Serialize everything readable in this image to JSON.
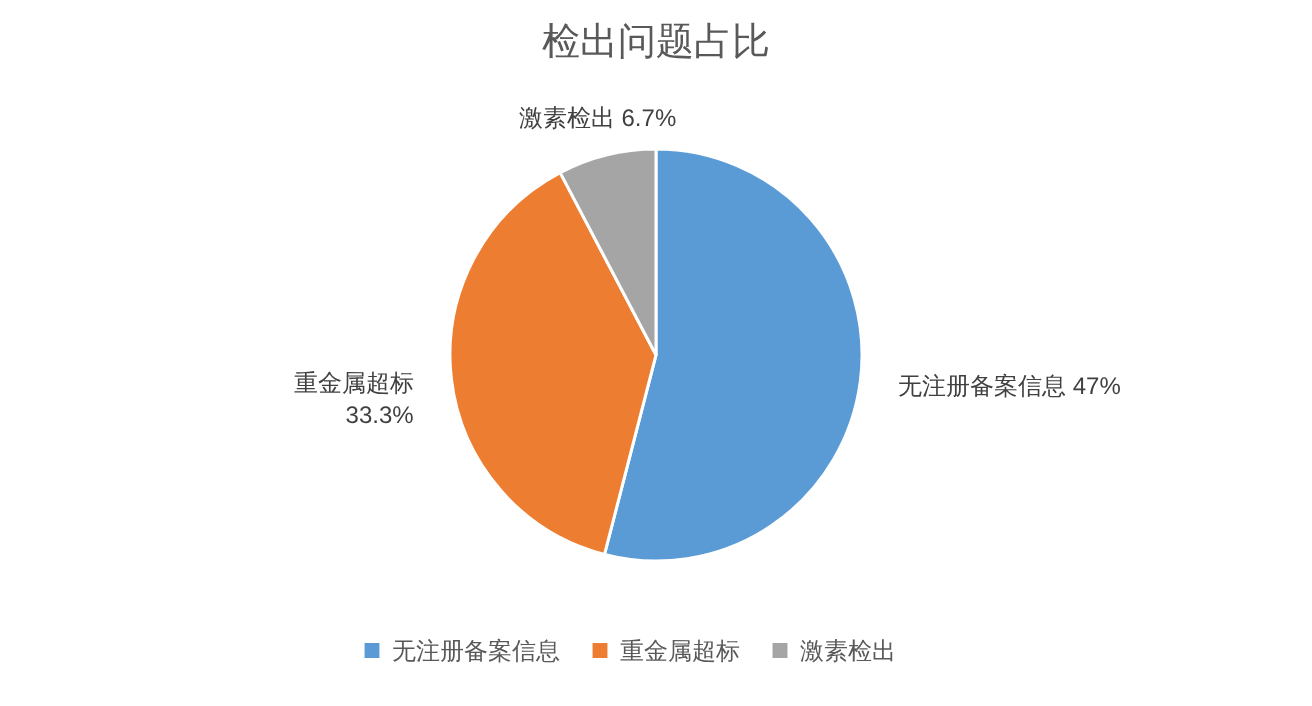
{
  "chart_data": {
    "type": "pie",
    "title": "检出问题占比",
    "categories": [
      "无注册备案信息",
      "重金属超标",
      "激素检出"
    ],
    "values": [
      47,
      33.3,
      6.7
    ],
    "value_labels": [
      "47%",
      "33.3%",
      "6.7%"
    ],
    "colors": [
      "#5b9bd5",
      "#ed7d31",
      "#a5a5a5"
    ],
    "legend": "bottom"
  }
}
